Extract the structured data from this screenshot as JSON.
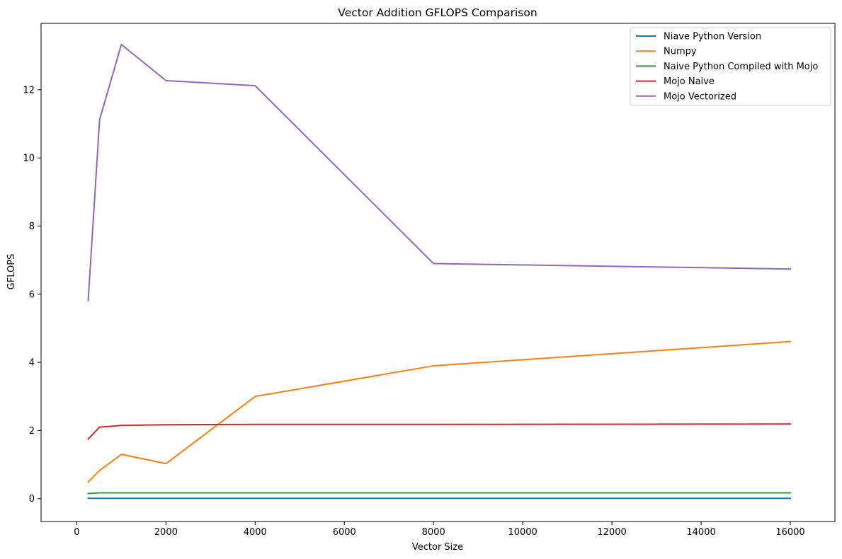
{
  "chart_data": {
    "type": "line",
    "title": "Vector Addition GFLOPS Comparison",
    "xlabel": "Vector Size",
    "ylabel": "GFLOPS",
    "xlim": [
      -800,
      17000
    ],
    "ylim": [
      -0.67,
      13.95
    ],
    "xticks": [
      0,
      2000,
      4000,
      6000,
      8000,
      10000,
      12000,
      14000,
      16000
    ],
    "yticks": [
      0,
      2,
      4,
      6,
      8,
      10,
      12
    ],
    "grid": false,
    "legend_position": "top-right",
    "x": [
      256,
      512,
      1000,
      2000,
      4000,
      8000,
      16000
    ],
    "series": [
      {
        "name": "Niave Python Version",
        "color": "#1f77b4",
        "values": [
          0.01,
          0.01,
          0.01,
          0.01,
          0.01,
          0.01,
          0.01
        ]
      },
      {
        "name": "Numpy",
        "color": "#ff7f0e",
        "values": [
          0.49,
          0.83,
          1.3,
          1.03,
          3.0,
          3.9,
          4.61
        ]
      },
      {
        "name": "Naive Python Compiled with Mojo",
        "color": "#2ca02c",
        "values": [
          0.15,
          0.17,
          0.17,
          0.17,
          0.17,
          0.17,
          0.17
        ]
      },
      {
        "name": "Mojo Naive",
        "color": "#d62728",
        "values": [
          1.75,
          2.1,
          2.15,
          2.17,
          2.18,
          2.18,
          2.19
        ]
      },
      {
        "name": "Mojo Vectorized",
        "color": "#9467bd",
        "values": [
          5.81,
          11.12,
          13.33,
          12.27,
          12.12,
          6.9,
          6.74
        ]
      }
    ]
  }
}
